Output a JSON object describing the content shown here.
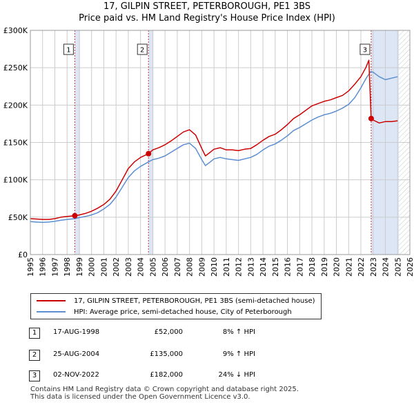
{
  "title": {
    "line1": "17, GILPIN STREET, PETERBOROUGH, PE1 3BS",
    "line2": "Price paid vs. HM Land Registry's House Price Index (HPI)"
  },
  "colors": {
    "property": "#cc0000",
    "hpi": "#5a8ed0",
    "shade": "#dce6f5",
    "marker_line": "#cc3333",
    "grid": "#cccccc"
  },
  "chart_data": {
    "type": "line",
    "xlim": [
      1995,
      2026
    ],
    "ylim": [
      0,
      300000
    ],
    "y_ticks": [
      0,
      50000,
      100000,
      150000,
      200000,
      250000,
      300000
    ],
    "y_tick_labels": [
      "£0",
      "£50K",
      "£100K",
      "£150K",
      "£200K",
      "£250K",
      "£300K"
    ],
    "x_ticks": [
      1995,
      1996,
      1997,
      1998,
      1999,
      2000,
      2001,
      2002,
      2003,
      2004,
      2005,
      2006,
      2007,
      2008,
      2009,
      2010,
      2011,
      2012,
      2013,
      2014,
      2015,
      2016,
      2017,
      2018,
      2019,
      2020,
      2021,
      2022,
      2023,
      2024,
      2025,
      2026
    ],
    "x_tick_labels": [
      "1995",
      "1996",
      "1997",
      "1998",
      "1999",
      "2000",
      "2001",
      "2002",
      "2003",
      "2004",
      "2005",
      "2006",
      "2007",
      "2008",
      "2009",
      "2010",
      "2011",
      "2012",
      "2013",
      "2014",
      "2015",
      "2016",
      "2017",
      "2018",
      "2019",
      "2020",
      "2021",
      "2022",
      "2023",
      "2024",
      "2025",
      "2026"
    ],
    "shaded_regions": [
      [
        1998.63,
        1999.05
      ],
      [
        2004.65,
        2005.05
      ],
      [
        2022.84,
        2025.1
      ]
    ],
    "hatched_region": [
      2025.1,
      2026
    ],
    "series": [
      {
        "name": "17, GILPIN STREET, PETERBOROUGH, PE1 3BS (semi-detached house)",
        "x": [
          1995,
          1995.5,
          1996,
          1996.5,
          1997,
          1997.5,
          1998,
          1998.63,
          1999,
          1999.5,
          2000,
          2000.5,
          2001,
          2001.5,
          2002,
          2002.5,
          2003,
          2003.5,
          2004,
          2004.65,
          2005,
          2005.5,
          2006,
          2006.5,
          2007,
          2007.5,
          2008,
          2008.5,
          2009,
          2009.3,
          2009.7,
          2010,
          2010.5,
          2011,
          2011.5,
          2012,
          2012.5,
          2013,
          2013.5,
          2014,
          2014.5,
          2015,
          2015.5,
          2016,
          2016.5,
          2017,
          2017.5,
          2018,
          2018.5,
          2019,
          2019.5,
          2020,
          2020.5,
          2021,
          2021.5,
          2022,
          2022.4,
          2022.65,
          2022.84,
          2023,
          2023.5,
          2024,
          2024.5,
          2025
        ],
        "values": [
          48000,
          47500,
          47000,
          47000,
          48000,
          50000,
          51000,
          52000,
          53000,
          55000,
          58000,
          62000,
          67000,
          74000,
          85000,
          100000,
          115000,
          124000,
          130000,
          135000,
          140000,
          143000,
          147000,
          152000,
          158000,
          164000,
          167000,
          160000,
          142000,
          132000,
          137000,
          141000,
          143000,
          140000,
          140000,
          139000,
          141000,
          142000,
          147000,
          153000,
          158000,
          161000,
          167000,
          174000,
          182000,
          187000,
          193000,
          199000,
          202000,
          205000,
          207000,
          210000,
          213000,
          219000,
          228000,
          238000,
          250000,
          260000,
          182000,
          180000,
          176000,
          178000,
          178000,
          179000
        ]
      },
      {
        "name": "HPI: Average price, semi-detached house, City of Peterborough",
        "x": [
          1995,
          1995.5,
          1996,
          1996.5,
          1997,
          1997.5,
          1998,
          1998.63,
          1999,
          1999.5,
          2000,
          2000.5,
          2001,
          2001.5,
          2002,
          2002.5,
          2003,
          2003.5,
          2004,
          2004.65,
          2005,
          2005.5,
          2006,
          2006.5,
          2007,
          2007.5,
          2008,
          2008.5,
          2009,
          2009.3,
          2009.7,
          2010,
          2010.5,
          2011,
          2011.5,
          2012,
          2012.5,
          2013,
          2013.5,
          2014,
          2014.5,
          2015,
          2015.5,
          2016,
          2016.5,
          2017,
          2017.5,
          2018,
          2018.5,
          2019,
          2019.5,
          2020,
          2020.5,
          2021,
          2021.5,
          2022,
          2022.4,
          2022.8,
          2023,
          2023.5,
          2024,
          2024.5,
          2025
        ],
        "values": [
          44000,
          43500,
          43000,
          43500,
          44500,
          46000,
          47000,
          48000,
          49500,
          51000,
          53000,
          56000,
          61000,
          67000,
          77000,
          90000,
          103000,
          112000,
          118000,
          124000,
          127000,
          129000,
          132000,
          137000,
          142000,
          147000,
          149000,
          142000,
          127000,
          119000,
          124000,
          128000,
          130000,
          128000,
          127000,
          126000,
          128000,
          130000,
          134000,
          140000,
          145000,
          148000,
          153000,
          159000,
          166000,
          170000,
          175000,
          180000,
          184000,
          187000,
          189000,
          192000,
          196000,
          201000,
          210000,
          223000,
          235000,
          245000,
          244000,
          238000,
          234000,
          236000,
          238000
        ]
      }
    ],
    "markers": [
      {
        "label": "1",
        "x": 1998.63,
        "y": 52000
      },
      {
        "label": "2",
        "x": 2004.65,
        "y": 135000
      },
      {
        "label": "3",
        "x": 2022.84,
        "y": 182000
      }
    ]
  },
  "legend": {
    "items": [
      {
        "label": "17, GILPIN STREET, PETERBOROUGH, PE1 3BS (semi-detached house)"
      },
      {
        "label": "HPI: Average price, semi-detached house, City of Peterborough"
      }
    ]
  },
  "transactions": [
    {
      "id": "1",
      "date": "17-AUG-1998",
      "price": "£52,000",
      "hpi": "8% ↑ HPI"
    },
    {
      "id": "2",
      "date": "25-AUG-2004",
      "price": "£135,000",
      "hpi": "9% ↑ HPI"
    },
    {
      "id": "3",
      "date": "02-NOV-2022",
      "price": "£182,000",
      "hpi": "24% ↓ HPI"
    }
  ],
  "footer": {
    "line1": "Contains HM Land Registry data © Crown copyright and database right 2025.",
    "line2": "This data is licensed under the Open Government Licence v3.0."
  }
}
